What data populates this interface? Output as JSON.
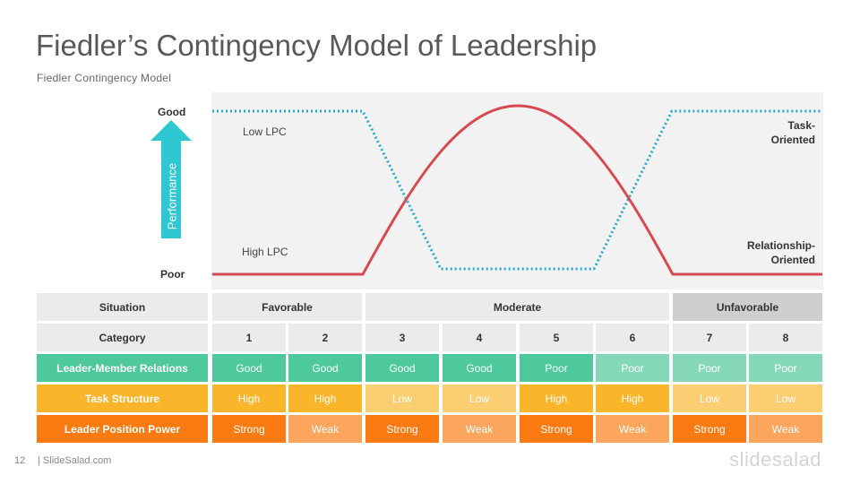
{
  "header": {
    "title": "Fiedler’s Contingency Model of Leadership",
    "subtitle": "Fiedler Contingency Model"
  },
  "diagram": {
    "axis_top": "Good",
    "axis_bottom": "Poor",
    "axis_label": "Performance",
    "low_lpc_label": "Low LPC",
    "high_lpc_label": "High LPC",
    "task_label": "Task-\nOriented",
    "relationship_label": "Relationship-\nOriented",
    "colors": {
      "arrow": "#2ec7d2",
      "low_lpc_line": "#2aa7cf",
      "high_lpc_line": "#d64a52",
      "plot_bg": "#f2f2f2"
    }
  },
  "table": {
    "situation_label": "Situation",
    "situations": [
      "Favorable",
      "Moderate",
      "Unfavorable"
    ],
    "category_label": "Category",
    "categories": [
      "1",
      "2",
      "3",
      "4",
      "5",
      "6",
      "7",
      "8"
    ],
    "rows": [
      {
        "label": "Leader-Member Relations",
        "values": [
          "Good",
          "Good",
          "Good",
          "Good",
          "Poor",
          "Poor",
          "Poor",
          "Poor"
        ],
        "color_strong": "#4dc99b",
        "color_light": "#85d9b8"
      },
      {
        "label": "Task Structure",
        "values": [
          "High",
          "High",
          "Low",
          "Low",
          "High",
          "High",
          "Low",
          "Low"
        ],
        "color_strong": "#fbb52b",
        "color_light": "#fcce72"
      },
      {
        "label": "Leader Position Power",
        "values": [
          "Strong",
          "Weak",
          "Strong",
          "Weak",
          "Strong",
          "Weak",
          "Strong",
          "Weak"
        ],
        "color_strong": "#fb7a12",
        "color_light": "#fba65c"
      }
    ]
  },
  "footer": {
    "page_number": "12",
    "site": "| SlideSalad.com",
    "logo": "slidesalad"
  }
}
